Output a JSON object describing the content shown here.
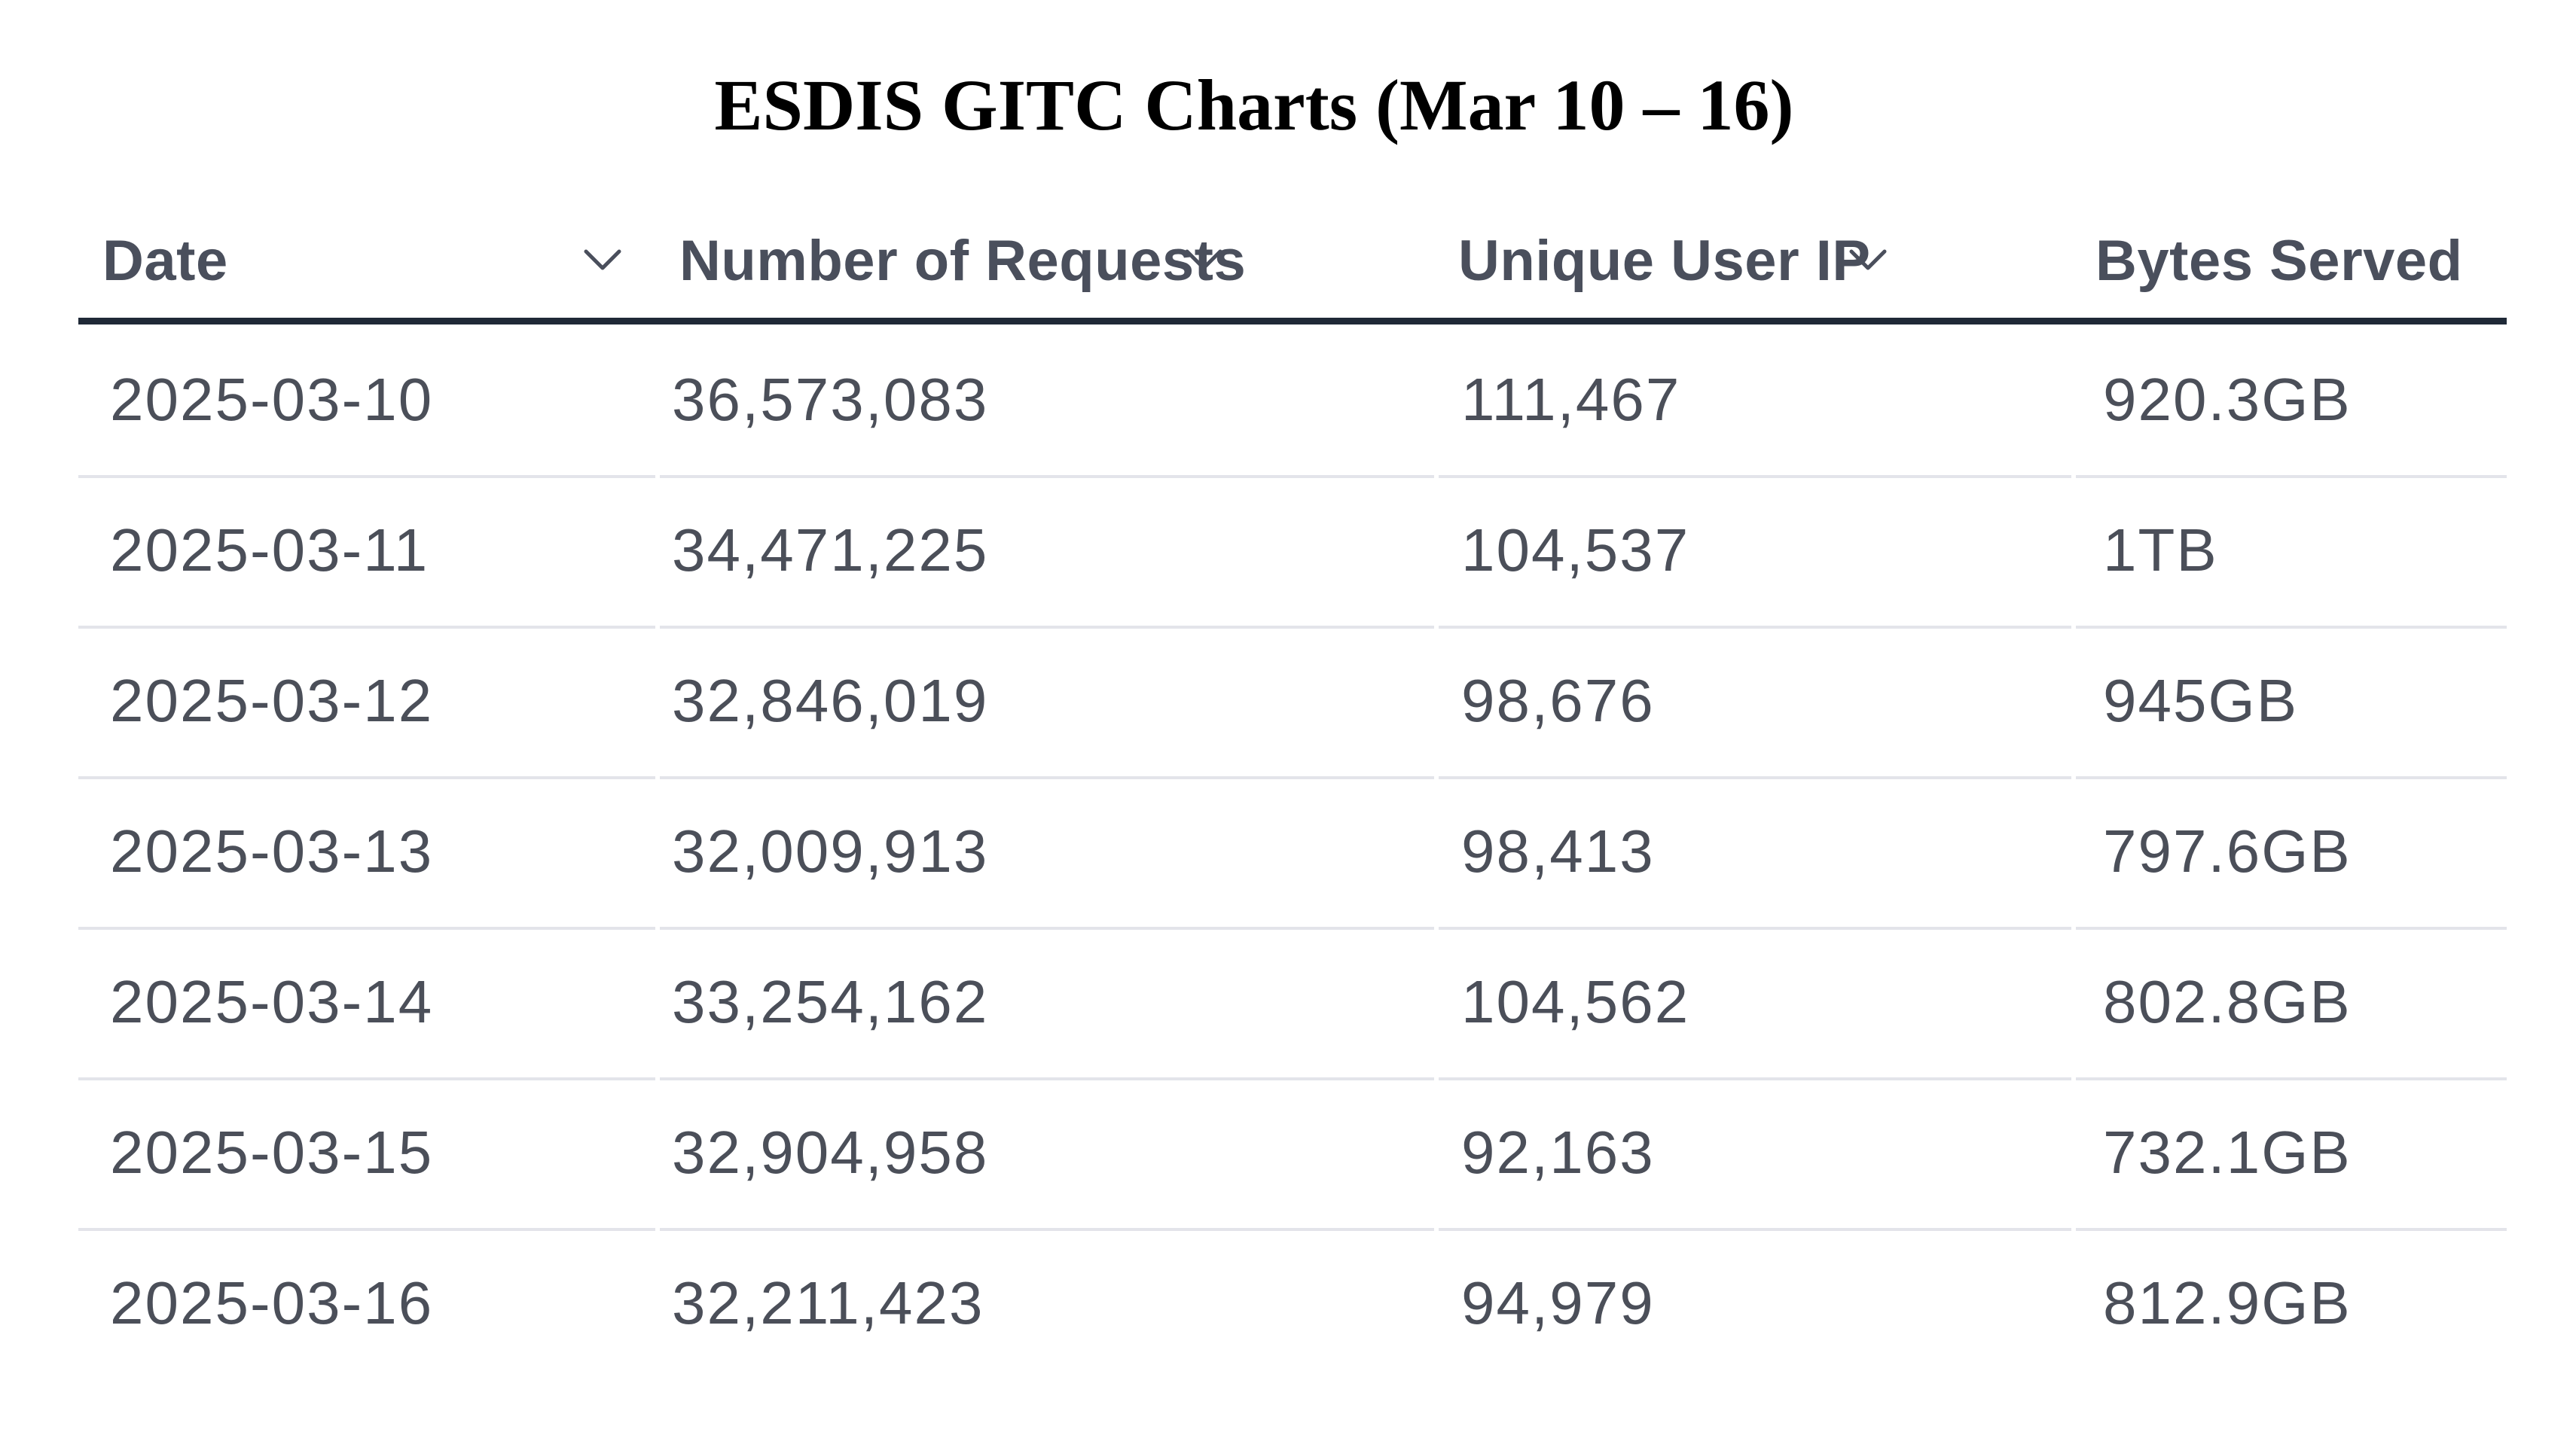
{
  "title": "ESDIS GITC Charts (Mar 10 – 16)",
  "table": {
    "columns": [
      "Date",
      "Number of Requests",
      "Unique User IP",
      "Bytes Served"
    ],
    "rows": [
      [
        "2025-03-10",
        "36,573,083",
        "111,467",
        "920.3GB"
      ],
      [
        "2025-03-11",
        "34,471,225",
        "104,537",
        "1TB"
      ],
      [
        "2025-03-12",
        "32,846,019",
        "98,676",
        "945GB"
      ],
      [
        "2025-03-13",
        "32,009,913",
        "98,413",
        "797.6GB"
      ],
      [
        "2025-03-14",
        "33,254,162",
        "104,562",
        "802.8GB"
      ],
      [
        "2025-03-15",
        "32,904,958",
        "92,163",
        "732.1GB"
      ],
      [
        "2025-03-16",
        "32,211,423",
        "94,979",
        "812.9GB"
      ]
    ]
  },
  "icons": {
    "sort": "chevron-down-icon"
  },
  "colors": {
    "header_text": "#4a4f5c",
    "cell_text": "#4b4f59",
    "header_rule": "#1f2937",
    "row_divider": "#e3e4ea"
  }
}
